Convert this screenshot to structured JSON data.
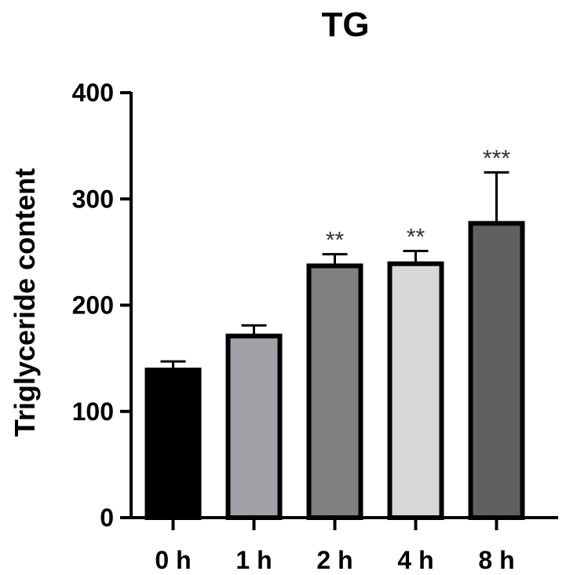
{
  "chart_data": {
    "type": "bar",
    "title": "TG",
    "xlabel": "",
    "ylabel": "Triglyceride content",
    "ylim": [
      0,
      400
    ],
    "yticks": [
      0,
      100,
      200,
      300,
      400
    ],
    "grid": false,
    "categories": [
      "0 h",
      "1 h",
      "2 h",
      "4 h",
      "8 h"
    ],
    "values": [
      139,
      171,
      237,
      239,
      277
    ],
    "errors": [
      8,
      10,
      11,
      12,
      48
    ],
    "significance": [
      "",
      "",
      "**",
      "**",
      "***"
    ],
    "colors": [
      "#000000",
      "#a0a0a6",
      "#808080",
      "#d8d8d8",
      "#606060"
    ]
  }
}
